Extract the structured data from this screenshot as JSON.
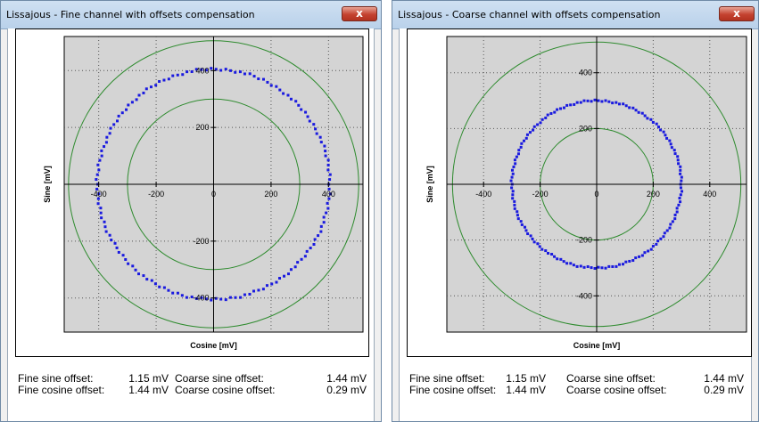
{
  "windows": [
    {
      "id": "left",
      "title": "Lissajous - Fine channel with offsets compensation",
      "close_label": "x",
      "chart_data": {
        "type": "scatter",
        "title": "",
        "xlabel": "Cosine [mV]",
        "ylabel": "Sine [mV]",
        "xlim": [
          -520,
          520
        ],
        "ylim": [
          -520,
          520
        ],
        "grid": true,
        "x_ticks": [
          -400,
          -200,
          0,
          200,
          400
        ],
        "y_ticks": [
          -400,
          -200,
          0,
          200,
          400
        ],
        "x_tick_labels": [
          "-400",
          "-200",
          "0",
          "200",
          "400"
        ],
        "y_tick_labels": [
          "-400",
          "-200",
          "0",
          "200",
          "400"
        ],
        "reference_circles": [
          300,
          505
        ],
        "series": [
          {
            "radius": 405,
            "center": [
              0,
              0
            ]
          }
        ]
      },
      "offsets": {
        "fine_sine_label": "Fine sine offset:",
        "fine_sine_value": "1.15 mV",
        "fine_cosine_label": "Fine cosine offset:",
        "fine_cosine_value": "1.44 mV",
        "coarse_sine_label": "Coarse sine offset:",
        "coarse_sine_value": "1.44 mV",
        "coarse_cosine_label": "Coarse cosine offset:",
        "coarse_cosine_value": "0.29 mV"
      }
    },
    {
      "id": "right",
      "title": "Lissajous - Coarse channel with offsets compensation",
      "close_label": "x",
      "chart_data": {
        "type": "scatter",
        "title": "",
        "xlabel": "Cosine [mV]",
        "ylabel": "Sine [mV]",
        "xlim": [
          -530,
          530
        ],
        "ylim": [
          -530,
          530
        ],
        "grid": true,
        "x_ticks": [
          -400,
          -200,
          0,
          200,
          400
        ],
        "y_ticks": [
          -400,
          -200,
          0,
          200,
          400
        ],
        "x_tick_labels": [
          "-400",
          "-200",
          "0",
          "200",
          "400"
        ],
        "y_tick_labels": [
          "-400",
          "-200",
          "0",
          "200",
          "400"
        ],
        "reference_circles": [
          200,
          510
        ],
        "series": [
          {
            "radius": 300,
            "center": [
              0,
              0
            ]
          }
        ]
      },
      "offsets": {
        "fine_sine_label": "Fine sine offset:",
        "fine_sine_value": "1.15 mV",
        "fine_cosine_label": "Fine cosine offset:",
        "fine_cosine_value": "1.44 mV",
        "coarse_sine_label": "Coarse sine offset:",
        "coarse_sine_value": "1.44 mV",
        "coarse_cosine_label": "Coarse cosine offset:",
        "coarse_cosine_value": "0.29 mV"
      }
    }
  ],
  "colors": {
    "plot_background": "#d4d4d4",
    "reference_circle": "#2e8b2e",
    "data_points": "#1a1adf",
    "grid": "#555555",
    "axis": "#000000"
  }
}
